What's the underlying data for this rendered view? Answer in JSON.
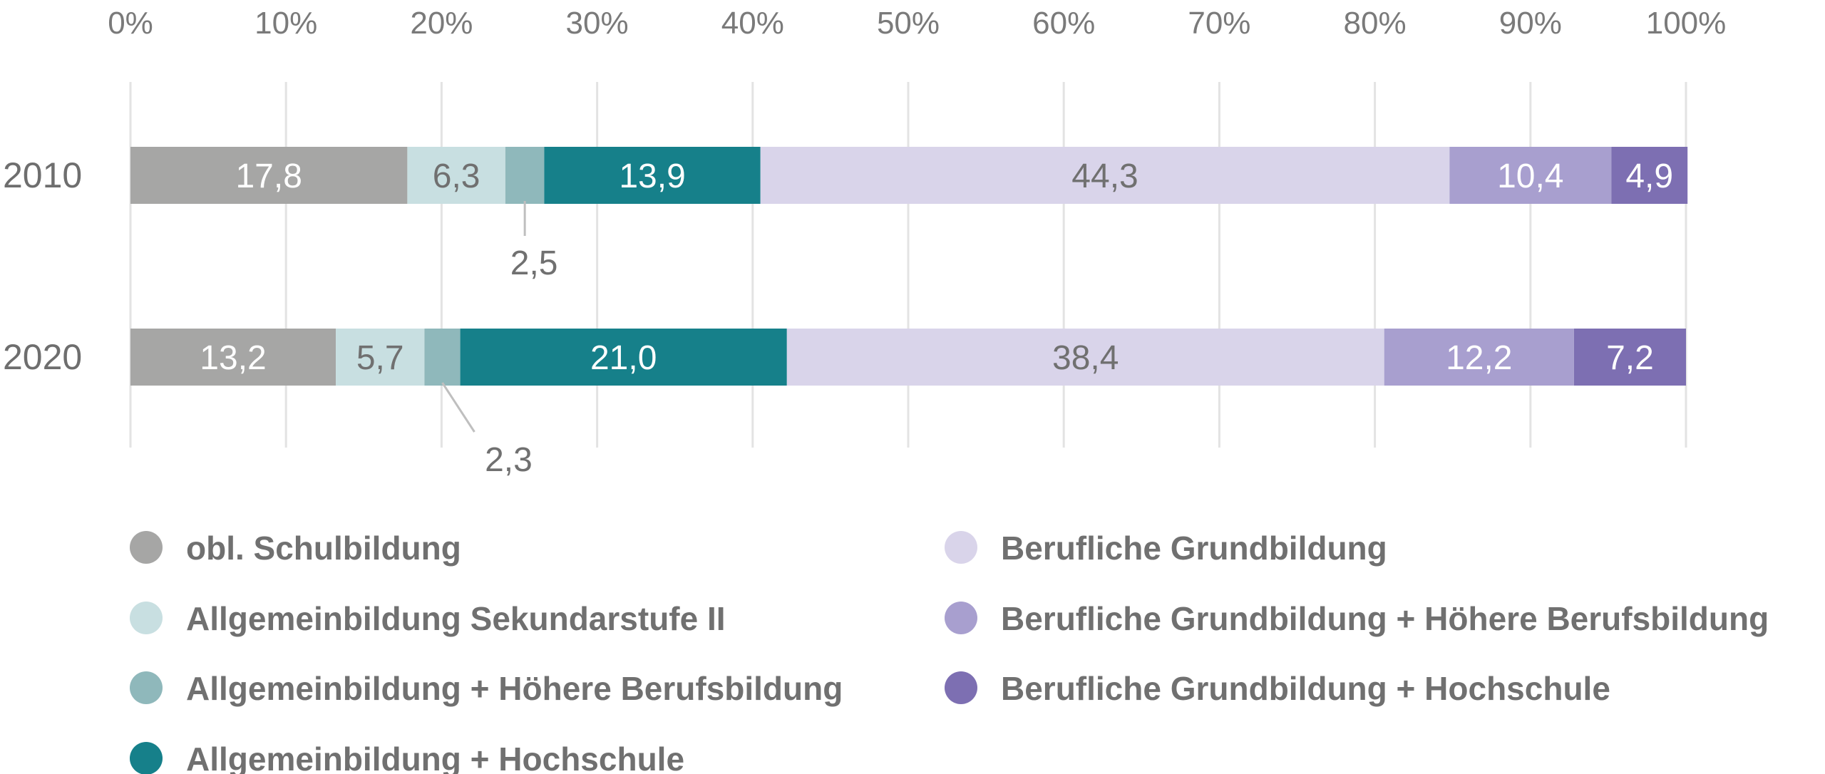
{
  "chart_data": {
    "type": "bar",
    "orientation": "horizontal",
    "stacked": true,
    "title": "",
    "xlabel": "",
    "ylabel": "",
    "xlim": [
      0,
      100
    ],
    "x_ticks": [
      "0%",
      "10%",
      "20%",
      "30%",
      "40%",
      "50%",
      "60%",
      "70%",
      "80%",
      "90%",
      "100%"
    ],
    "categories": [
      "2010",
      "2020"
    ],
    "grid": true,
    "legend_position": "bottom",
    "series": [
      {
        "name": "obl. Schulbildung",
        "color": "#a6a6a5",
        "label_color": "#ffffff",
        "values": [
          17.8,
          13.2
        ],
        "labels": [
          "17,8",
          "13,2"
        ]
      },
      {
        "name": "Allgemeinbildung Sekundarstufe II",
        "color": "#c8dfe1",
        "label_color": "#707070",
        "values": [
          6.3,
          5.7
        ],
        "labels": [
          "6,3",
          "5,7"
        ]
      },
      {
        "name": "Allgemeinbildung + Höhere Berufsbildung",
        "color": "#8fb8bb",
        "label_color": "#707070",
        "values": [
          2.5,
          2.3
        ],
        "labels": [
          "2,5",
          "2,3"
        ],
        "callout": true
      },
      {
        "name": "Allgemeinbildung + Hochschule",
        "color": "#16808a",
        "label_color": "#ffffff",
        "values": [
          13.9,
          21.0
        ],
        "labels": [
          "13,9",
          "21,0"
        ]
      },
      {
        "name": "Berufliche Grundbildung",
        "color": "#d9d4ea",
        "label_color": "#707070",
        "values": [
          44.3,
          38.4
        ],
        "labels": [
          "44,3",
          "38,4"
        ]
      },
      {
        "name": "Berufliche Grundbildung + Höhere Berufsbildung",
        "color": "#a89fcf",
        "label_color": "#ffffff",
        "values": [
          10.4,
          12.2
        ],
        "labels": [
          "10,4",
          "12,2"
        ]
      },
      {
        "name": "Berufliche Grundbildung + Hochschule",
        "color": "#7d6fb2",
        "label_color": "#ffffff",
        "values": [
          4.9,
          7.2
        ],
        "labels": [
          "4,9",
          "7,2"
        ]
      }
    ]
  }
}
